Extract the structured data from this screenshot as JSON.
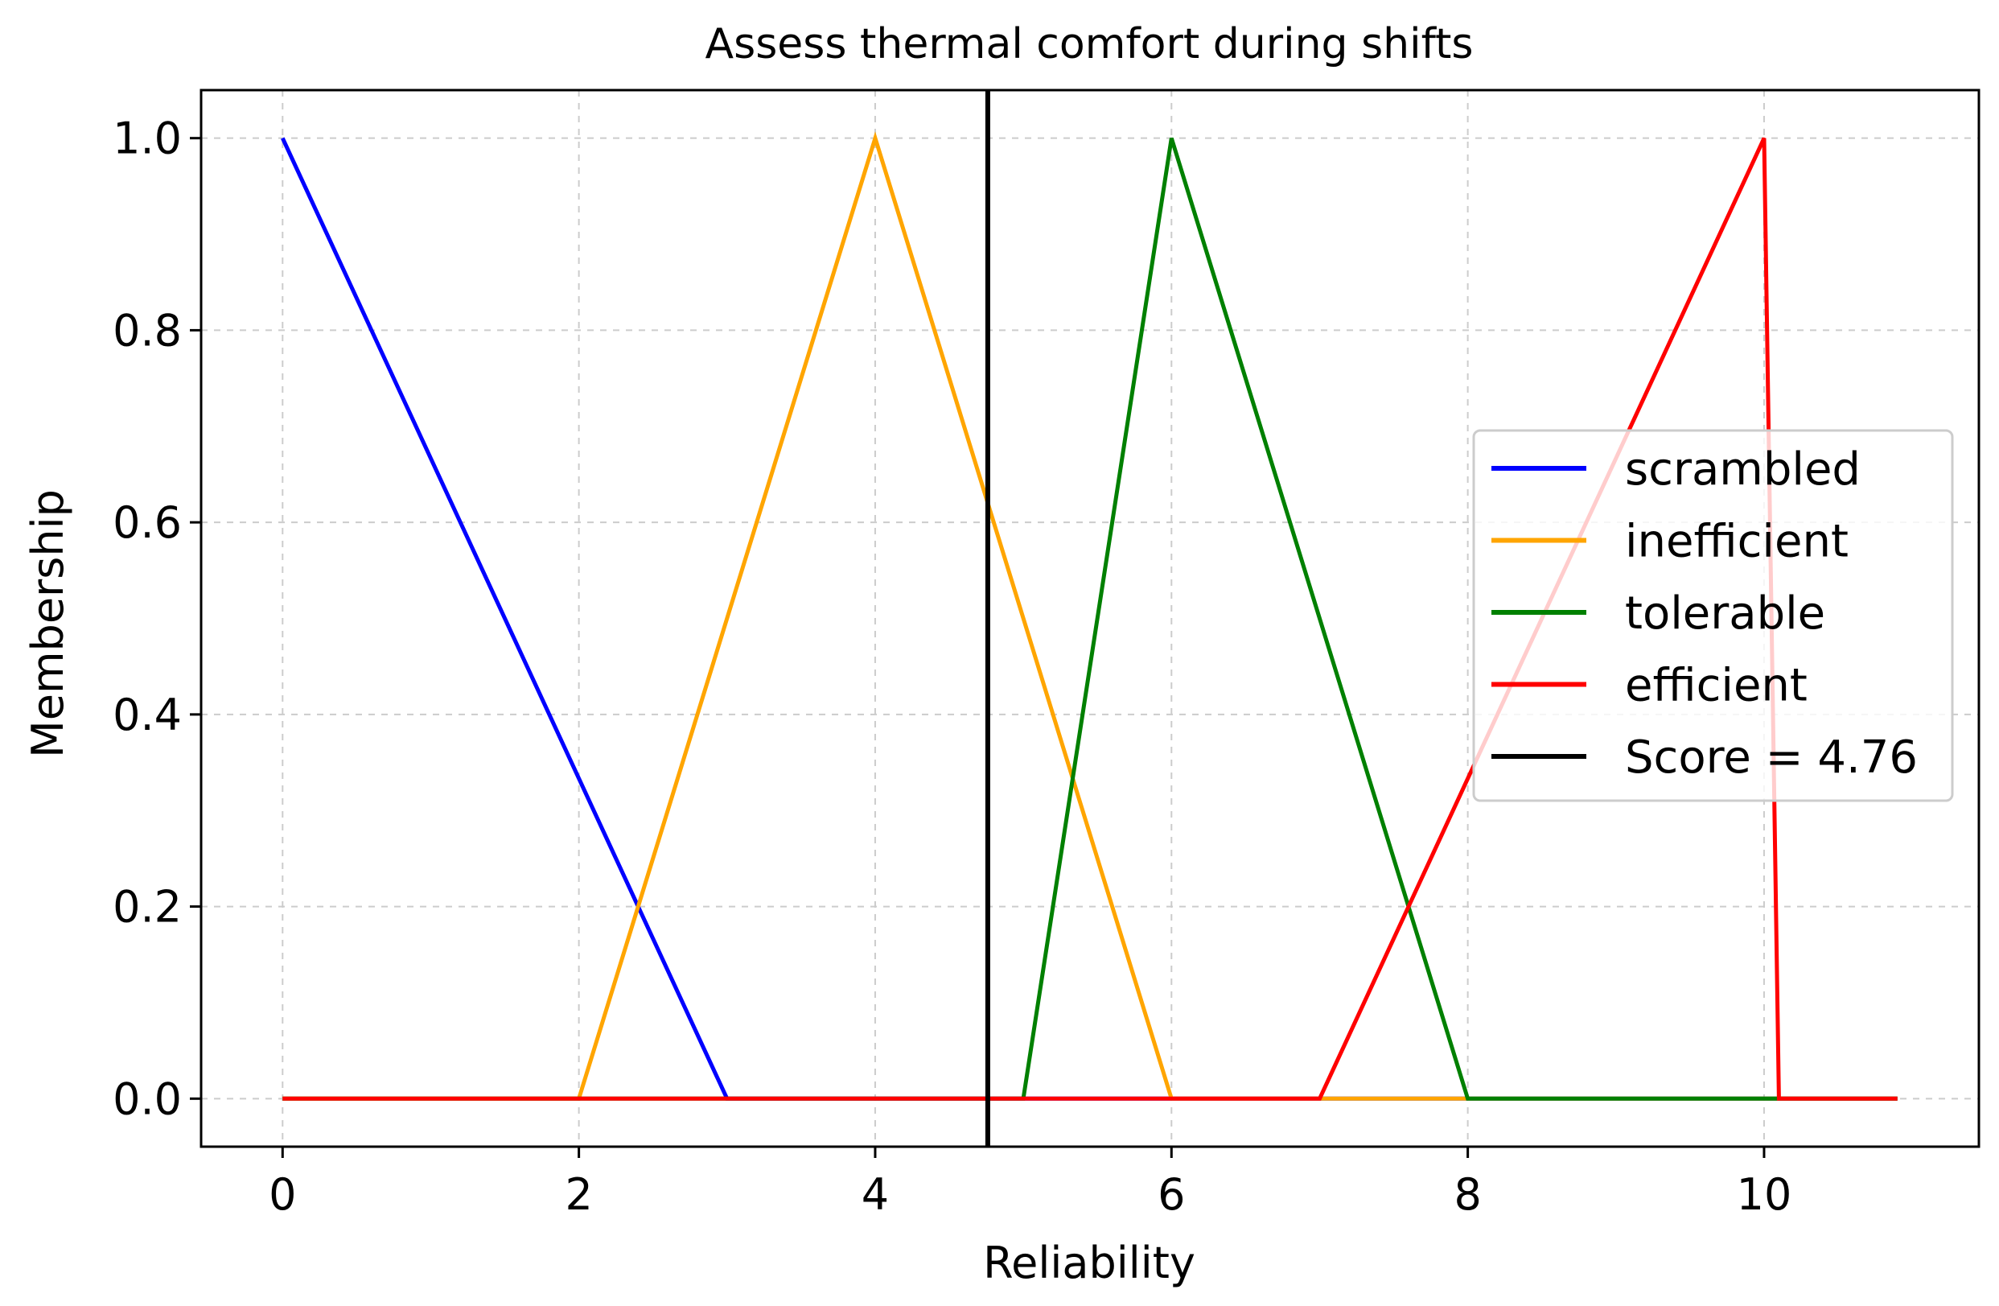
{
  "chart_data": {
    "type": "line",
    "title": "Assess thermal comfort during shifts",
    "xlabel": "Reliability",
    "ylabel": "Membership",
    "xlim": [
      -0.55,
      11.45
    ],
    "ylim": [
      -0.05,
      1.05
    ],
    "xticks": [
      0,
      2,
      4,
      6,
      8,
      10
    ],
    "yticks": [
      0.0,
      0.2,
      0.4,
      0.6,
      0.8,
      1.0
    ],
    "xtick_labels": [
      "0",
      "2",
      "4",
      "6",
      "8",
      "10"
    ],
    "ytick_labels": [
      "0.0",
      "0.2",
      "0.4",
      "0.6",
      "0.8",
      "1.0"
    ],
    "grid": true,
    "legend_position": "center-right",
    "series": [
      {
        "name": "scrambled",
        "color": "#0000ff",
        "x": [
          0,
          3,
          10.9
        ],
        "y": [
          1,
          0,
          0
        ]
      },
      {
        "name": "inefficient",
        "color": "#ffa500",
        "x": [
          0,
          2,
          4,
          6,
          10.9
        ],
        "y": [
          0,
          0,
          1,
          0,
          0
        ]
      },
      {
        "name": "tolerable",
        "color": "#008000",
        "x": [
          0,
          5,
          6,
          8,
          10.9
        ],
        "y": [
          0,
          0,
          1,
          0,
          0
        ]
      },
      {
        "name": "efficient",
        "color": "#ff0000",
        "x": [
          0,
          7,
          10,
          10.1,
          10.9
        ],
        "y": [
          0,
          0,
          1,
          0,
          0
        ]
      }
    ],
    "vline": {
      "label": "Score = 4.76",
      "x": 4.76,
      "color": "#000000"
    }
  }
}
